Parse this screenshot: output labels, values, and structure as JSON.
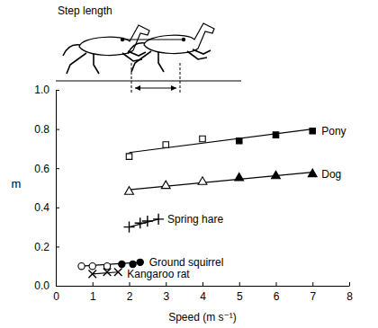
{
  "chart_data": {
    "type": "scatter",
    "annotation": "Step length",
    "x_label": "Speed (m s⁻¹)",
    "y_label": "m",
    "xlim": [
      0,
      8
    ],
    "ylim": [
      0,
      1
    ],
    "xticks": [
      0,
      1,
      2,
      3,
      4,
      5,
      6,
      7,
      8
    ],
    "yticks": [
      {
        "value": 0,
        "label": "0.0"
      },
      {
        "value": 0.2,
        "label": "0.2"
      },
      {
        "value": 0.4,
        "label": "0.4"
      },
      {
        "value": 0.6,
        "label": "0.6"
      },
      {
        "value": 0.8,
        "label": "0.8"
      },
      {
        "value": 1,
        "label": "1.0"
      }
    ],
    "grid": false,
    "series": [
      {
        "name": "Pony",
        "marker": "square",
        "color": "#000000",
        "colors": [
          "#ffffff",
          "#ffffff",
          "#ffffff",
          "#000000",
          "#000000",
          "#000000"
        ],
        "x": [
          2,
          3,
          4,
          5,
          6,
          7
        ],
        "values": [
          0.66,
          0.72,
          0.75,
          0.74,
          0.77,
          0.79
        ],
        "trend": {
          "x": [
            2,
            7
          ],
          "values": [
            0.68,
            0.8
          ]
        }
      },
      {
        "name": "Dog",
        "marker": "triangle",
        "color": "#000000",
        "colors": [
          "#ffffff",
          "#ffffff",
          "#ffffff",
          "#000000",
          "#000000",
          "#000000"
        ],
        "x": [
          2,
          3,
          4,
          5,
          6,
          7
        ],
        "values": [
          0.48,
          0.51,
          0.53,
          0.55,
          0.56,
          0.57
        ],
        "trend": {
          "x": [
            2,
            7
          ],
          "values": [
            0.49,
            0.58
          ]
        }
      },
      {
        "name": "Spring hare",
        "marker": "plus",
        "color": "#000000",
        "colors": [
          "#000000",
          "#000000",
          "#000000",
          "#000000"
        ],
        "x": [
          2,
          2.3,
          2.5,
          2.8
        ],
        "values": [
          0.3,
          0.32,
          0.33,
          0.34
        ],
        "trend": {
          "x": [
            2,
            2.8
          ],
          "values": [
            0.3,
            0.34
          ]
        }
      },
      {
        "name": "Ground squirrel",
        "marker": "circle",
        "color": "#000000",
        "colors": [
          "#ffffff",
          "#ffffff",
          "#ffffff",
          "#000000",
          "#000000",
          "#000000"
        ],
        "x": [
          0.7,
          1,
          1.4,
          1.8,
          2.1,
          2.3
        ],
        "values": [
          0.1,
          0.1,
          0.1,
          0.11,
          0.11,
          0.12
        ],
        "trend": {
          "x": [
            0.7,
            2.3
          ],
          "values": [
            0.1,
            0.12
          ]
        }
      },
      {
        "name": "Kangaroo rat",
        "marker": "x",
        "color": "#000000",
        "colors": [
          "#000000",
          "#000000",
          "#000000"
        ],
        "x": [
          1,
          1.4,
          1.7
        ],
        "values": [
          0.06,
          0.07,
          0.07
        ],
        "trend": {
          "x": [
            1,
            1.7
          ],
          "values": [
            0.06,
            0.07
          ]
        }
      }
    ]
  }
}
